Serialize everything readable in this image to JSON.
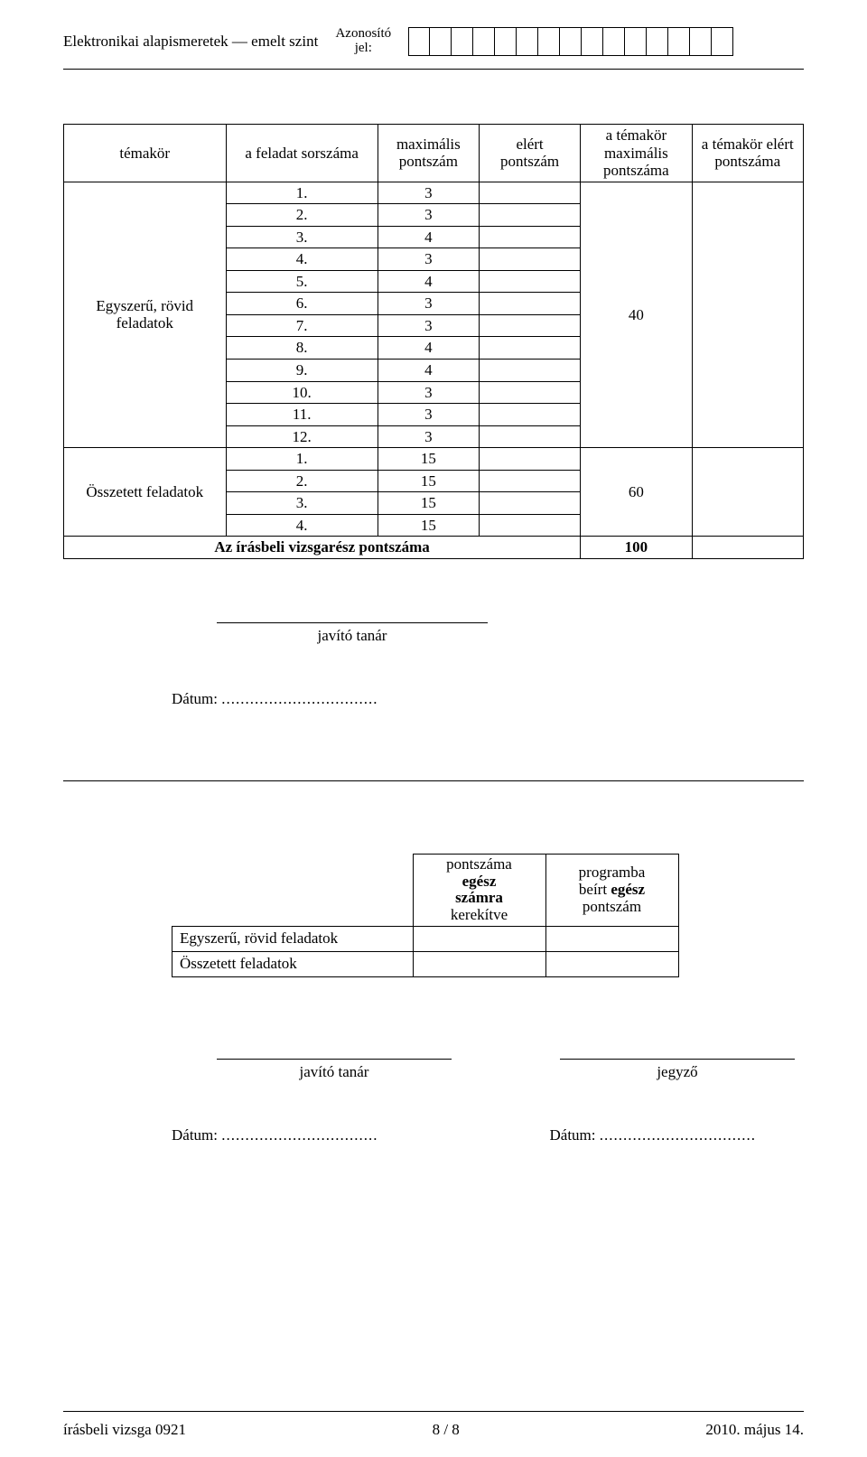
{
  "header": {
    "subject_level": "Elektronikai alapismeretek — emelt szint",
    "id_label_line1": "Azonosító",
    "id_label_line2": "jel:",
    "id_box_count": 15
  },
  "score_table": {
    "headers": {
      "temakor": "témakör",
      "sorszam": "a feladat sorszáma",
      "max_pont": "maximális pontszám",
      "elert_pont": "elért pontszám",
      "tema_max": "a témakör maximális pontszáma",
      "tema_elert": "a témakör elért pontszáma"
    },
    "groups": [
      {
        "name": "Egyszerű, rövid feladatok",
        "tema_max": "40",
        "rows": [
          {
            "n": "1.",
            "max": "3"
          },
          {
            "n": "2.",
            "max": "3"
          },
          {
            "n": "3.",
            "max": "4"
          },
          {
            "n": "4.",
            "max": "3"
          },
          {
            "n": "5.",
            "max": "4"
          },
          {
            "n": "6.",
            "max": "3"
          },
          {
            "n": "7.",
            "max": "3"
          },
          {
            "n": "8.",
            "max": "4"
          },
          {
            "n": "9.",
            "max": "4"
          },
          {
            "n": "10.",
            "max": "3"
          },
          {
            "n": "11.",
            "max": "3"
          },
          {
            "n": "12.",
            "max": "3"
          }
        ]
      },
      {
        "name": "Összetett feladatok",
        "tema_max": "60",
        "rows": [
          {
            "n": "1.",
            "max": "15"
          },
          {
            "n": "2.",
            "max": "15"
          },
          {
            "n": "3.",
            "max": "15"
          },
          {
            "n": "4.",
            "max": "15"
          }
        ]
      }
    ],
    "total_label": "Az írásbeli vizsgarész pontszáma",
    "total_value": "100"
  },
  "signatures": {
    "javito_tanar": "javító tanár",
    "jegyzo": "jegyző",
    "date_label": "Dátum:",
    "dots": "................................."
  },
  "round_table": {
    "col2_header_l1": "pontszáma",
    "col2_header_l2": "egész",
    "col2_header_l3": "számra",
    "col2_header_l4": "kerekítve",
    "col3_header_l1": "programba",
    "col3_header_l2": "beírt egész",
    "col3_header_l3": "pontszám",
    "rows": [
      {
        "label": "Egyszerű, rövid feladatok"
      },
      {
        "label": "Összetett feladatok"
      }
    ]
  },
  "footer": {
    "left": "írásbeli vizsga 0921",
    "center": "8 / 8",
    "right": "2010. május 14."
  },
  "bold_words": {
    "egesz": "egész",
    "szamra": "számra",
    "beirt_egesz": "beírt egész"
  }
}
